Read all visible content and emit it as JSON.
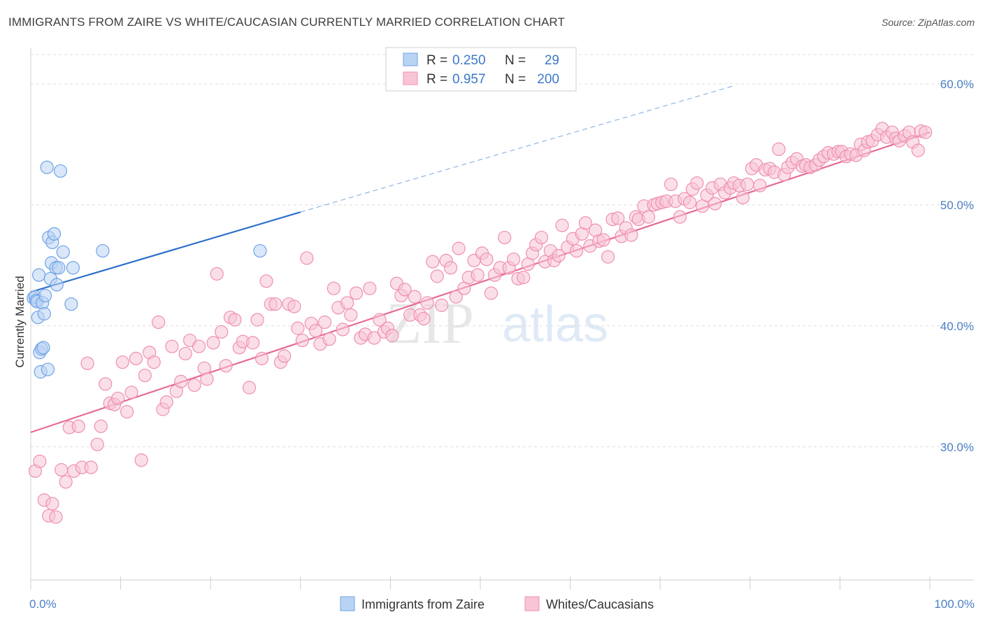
{
  "title": "IMMIGRANTS FROM ZAIRE VS WHITE/CAUCASIAN CURRENTLY MARRIED CORRELATION CHART",
  "source": "Source: ZipAtlas.com",
  "watermark": {
    "zip": "ZIP",
    "atlas": "atlas"
  },
  "stats": [
    {
      "r_label": "R =",
      "r_value": "0.250",
      "n_label": "N =",
      "n_value": "29",
      "color": "#6fa3e6",
      "fill": "#b9d3f4"
    },
    {
      "r_label": "R =",
      "r_value": "0.957",
      "n_label": "N =",
      "n_value": "200",
      "color": "#ef8fb0",
      "fill": "#f8c4d6"
    }
  ],
  "chart_data": {
    "type": "scatter",
    "title": "IMMIGRANTS FROM ZAIRE VS WHITE/CAUCASIAN CURRENTLY MARRIED CORRELATION CHART",
    "xlabel": "",
    "ylabel": "Currently Married",
    "xlim": [
      0,
      100
    ],
    "ylim": [
      19,
      63
    ],
    "x_tick_labels": {
      "left": "0.0%",
      "right": "100.0%"
    },
    "y_ticks": [
      {
        "value": 30,
        "label": "30.0%"
      },
      {
        "value": 40,
        "label": "40.0%"
      },
      {
        "value": 50,
        "label": "50.0%"
      },
      {
        "value": 60,
        "label": "60.0%"
      }
    ],
    "series": [
      {
        "name": "Immigrants from Zaire",
        "color": "#6fa3e6",
        "fill": "#b9d3f4",
        "trend": {
          "x0": 0,
          "y0": 42.8,
          "x1": 30,
          "y1": 49.4,
          "dash_x1": 78,
          "dash_y1": 59.8,
          "color": "#2e6fcb"
        },
        "points": [
          [
            0.3,
            42.3
          ],
          [
            0.5,
            42.4
          ],
          [
            0.6,
            42.1
          ],
          [
            0.7,
            42.0
          ],
          [
            0.8,
            40.7
          ],
          [
            0.9,
            44.2
          ],
          [
            1.0,
            37.8
          ],
          [
            1.1,
            36.2
          ],
          [
            1.2,
            38.1
          ],
          [
            1.3,
            41.9
          ],
          [
            1.4,
            38.2
          ],
          [
            1.5,
            41.0
          ],
          [
            1.6,
            42.5
          ],
          [
            1.8,
            53.1
          ],
          [
            1.9,
            36.4
          ],
          [
            2.0,
            47.3
          ],
          [
            2.2,
            43.9
          ],
          [
            2.3,
            45.2
          ],
          [
            2.4,
            46.9
          ],
          [
            2.6,
            47.6
          ],
          [
            2.8,
            44.8
          ],
          [
            2.9,
            43.4
          ],
          [
            3.1,
            44.8
          ],
          [
            3.3,
            52.8
          ],
          [
            3.6,
            46.1
          ],
          [
            4.5,
            41.8
          ],
          [
            4.7,
            44.8
          ],
          [
            8.0,
            46.2
          ],
          [
            25.5,
            46.2
          ]
        ]
      },
      {
        "name": "Whites/Caucasians",
        "color": "#ef8fb0",
        "fill": "#f8c4d6",
        "trend": {
          "x0": 0,
          "y0": 31.2,
          "x1": 100,
          "y1": 56.0,
          "color": "#e66a95"
        },
        "points": [
          [
            0.5,
            28.0
          ],
          [
            1.0,
            28.8
          ],
          [
            1.5,
            25.6
          ],
          [
            2.0,
            24.3
          ],
          [
            2.4,
            25.3
          ],
          [
            2.8,
            24.2
          ],
          [
            3.4,
            28.1
          ],
          [
            3.9,
            27.1
          ],
          [
            4.3,
            31.6
          ],
          [
            4.8,
            28.0
          ],
          [
            5.3,
            31.7
          ],
          [
            5.7,
            28.3
          ],
          [
            6.3,
            36.9
          ],
          [
            6.7,
            28.3
          ],
          [
            7.4,
            30.2
          ],
          [
            7.8,
            31.7
          ],
          [
            8.3,
            35.2
          ],
          [
            8.8,
            33.6
          ],
          [
            9.3,
            33.5
          ],
          [
            9.7,
            34.0
          ],
          [
            10.2,
            37.0
          ],
          [
            10.7,
            32.9
          ],
          [
            11.2,
            34.5
          ],
          [
            11.7,
            37.3
          ],
          [
            12.3,
            28.9
          ],
          [
            12.7,
            35.9
          ],
          [
            13.2,
            37.8
          ],
          [
            13.7,
            37.0
          ],
          [
            14.2,
            40.3
          ],
          [
            14.7,
            33.1
          ],
          [
            15.1,
            33.7
          ],
          [
            15.7,
            38.3
          ],
          [
            16.2,
            34.6
          ],
          [
            16.7,
            35.4
          ],
          [
            17.2,
            37.7
          ],
          [
            17.7,
            38.8
          ],
          [
            18.2,
            35.1
          ],
          [
            18.7,
            38.3
          ],
          [
            19.3,
            36.5
          ],
          [
            19.6,
            35.6
          ],
          [
            20.3,
            38.6
          ],
          [
            20.7,
            44.3
          ],
          [
            21.2,
            39.5
          ],
          [
            21.7,
            36.7
          ],
          [
            22.2,
            40.7
          ],
          [
            22.7,
            40.5
          ],
          [
            23.2,
            38.2
          ],
          [
            23.6,
            38.7
          ],
          [
            24.3,
            34.9
          ],
          [
            24.7,
            38.6
          ],
          [
            25.2,
            40.5
          ],
          [
            25.7,
            37.3
          ],
          [
            26.2,
            43.7
          ],
          [
            26.7,
            41.8
          ],
          [
            27.2,
            41.8
          ],
          [
            27.8,
            37.0
          ],
          [
            28.2,
            37.5
          ],
          [
            28.7,
            41.8
          ],
          [
            29.3,
            41.6
          ],
          [
            29.7,
            39.8
          ],
          [
            30.2,
            38.8
          ],
          [
            30.7,
            45.6
          ],
          [
            31.2,
            40.2
          ],
          [
            31.7,
            39.6
          ],
          [
            32.2,
            38.5
          ],
          [
            32.7,
            40.3
          ],
          [
            33.2,
            38.9
          ],
          [
            33.7,
            43.1
          ],
          [
            34.2,
            41.5
          ],
          [
            34.7,
            39.7
          ],
          [
            35.2,
            41.9
          ],
          [
            35.6,
            40.9
          ],
          [
            36.2,
            42.7
          ],
          [
            36.7,
            39.0
          ],
          [
            37.2,
            39.3
          ],
          [
            37.7,
            43.1
          ],
          [
            38.2,
            39.0
          ],
          [
            38.8,
            40.5
          ],
          [
            39.3,
            39.5
          ],
          [
            39.7,
            39.8
          ],
          [
            40.2,
            39.2
          ],
          [
            40.7,
            43.5
          ],
          [
            41.2,
            42.5
          ],
          [
            41.6,
            43.0
          ],
          [
            42.2,
            40.9
          ],
          [
            42.7,
            42.4
          ],
          [
            43.3,
            40.9
          ],
          [
            43.7,
            40.6
          ],
          [
            44.1,
            41.9
          ],
          [
            44.7,
            45.3
          ],
          [
            45.2,
            44.1
          ],
          [
            45.7,
            41.7
          ],
          [
            46.2,
            45.4
          ],
          [
            46.7,
            44.8
          ],
          [
            47.3,
            42.4
          ],
          [
            47.6,
            46.4
          ],
          [
            48.2,
            43.1
          ],
          [
            48.7,
            44.0
          ],
          [
            49.3,
            45.4
          ],
          [
            49.7,
            44.2
          ],
          [
            50.2,
            46.0
          ],
          [
            50.7,
            45.5
          ],
          [
            51.2,
            42.7
          ],
          [
            51.6,
            44.2
          ],
          [
            52.2,
            44.8
          ],
          [
            52.7,
            47.3
          ],
          [
            53.2,
            44.8
          ],
          [
            53.7,
            45.5
          ],
          [
            54.2,
            43.9
          ],
          [
            54.8,
            44.0
          ],
          [
            55.3,
            45.1
          ],
          [
            55.8,
            46.0
          ],
          [
            56.2,
            46.7
          ],
          [
            56.8,
            47.3
          ],
          [
            57.2,
            45.3
          ],
          [
            57.8,
            46.2
          ],
          [
            58.2,
            45.4
          ],
          [
            58.7,
            45.8
          ],
          [
            59.1,
            48.3
          ],
          [
            59.7,
            46.5
          ],
          [
            60.3,
            47.2
          ],
          [
            60.7,
            46.2
          ],
          [
            61.3,
            47.6
          ],
          [
            61.7,
            48.5
          ],
          [
            62.2,
            46.6
          ],
          [
            62.8,
            47.9
          ],
          [
            63.2,
            47.0
          ],
          [
            63.7,
            47.1
          ],
          [
            64.2,
            45.7
          ],
          [
            64.7,
            48.8
          ],
          [
            65.3,
            48.9
          ],
          [
            65.7,
            47.4
          ],
          [
            66.2,
            48.1
          ],
          [
            66.8,
            47.5
          ],
          [
            67.3,
            49.0
          ],
          [
            67.6,
            48.8
          ],
          [
            68.2,
            49.9
          ],
          [
            68.7,
            49.0
          ],
          [
            69.3,
            50.0
          ],
          [
            69.7,
            50.1
          ],
          [
            70.2,
            50.2
          ],
          [
            70.7,
            50.3
          ],
          [
            71.2,
            51.7
          ],
          [
            71.7,
            50.3
          ],
          [
            72.2,
            49.0
          ],
          [
            72.7,
            50.5
          ],
          [
            73.3,
            50.2
          ],
          [
            73.6,
            51.3
          ],
          [
            74.1,
            51.8
          ],
          [
            74.7,
            49.9
          ],
          [
            75.2,
            50.8
          ],
          [
            75.8,
            51.4
          ],
          [
            76.1,
            50.1
          ],
          [
            76.7,
            51.7
          ],
          [
            77.2,
            51.0
          ],
          [
            77.8,
            51.4
          ],
          [
            78.2,
            51.8
          ],
          [
            78.8,
            51.6
          ],
          [
            79.2,
            50.6
          ],
          [
            79.7,
            51.7
          ],
          [
            80.2,
            53.0
          ],
          [
            80.7,
            53.3
          ],
          [
            81.1,
            51.6
          ],
          [
            81.7,
            52.9
          ],
          [
            82.2,
            53.0
          ],
          [
            82.7,
            52.7
          ],
          [
            83.2,
            54.6
          ],
          [
            83.8,
            52.5
          ],
          [
            84.2,
            53.1
          ],
          [
            84.7,
            53.5
          ],
          [
            85.2,
            53.8
          ],
          [
            85.8,
            53.2
          ],
          [
            86.2,
            53.3
          ],
          [
            86.7,
            53.1
          ],
          [
            87.3,
            53.3
          ],
          [
            87.7,
            53.7
          ],
          [
            88.2,
            54.0
          ],
          [
            88.7,
            54.3
          ],
          [
            89.3,
            54.2
          ],
          [
            89.8,
            54.4
          ],
          [
            90.2,
            54.4
          ],
          [
            90.7,
            54.0
          ],
          [
            91.2,
            54.2
          ],
          [
            91.8,
            54.1
          ],
          [
            92.3,
            55.0
          ],
          [
            92.7,
            54.5
          ],
          [
            93.1,
            55.2
          ],
          [
            93.6,
            55.3
          ],
          [
            94.2,
            55.8
          ],
          [
            94.7,
            56.3
          ],
          [
            95.2,
            55.6
          ],
          [
            95.8,
            56.0
          ],
          [
            96.2,
            55.5
          ],
          [
            96.6,
            55.3
          ],
          [
            97.2,
            55.7
          ],
          [
            97.7,
            56.0
          ],
          [
            98.1,
            55.2
          ],
          [
            98.7,
            54.5
          ],
          [
            99.0,
            56.1
          ],
          [
            99.5,
            56.0
          ]
        ]
      }
    ]
  }
}
